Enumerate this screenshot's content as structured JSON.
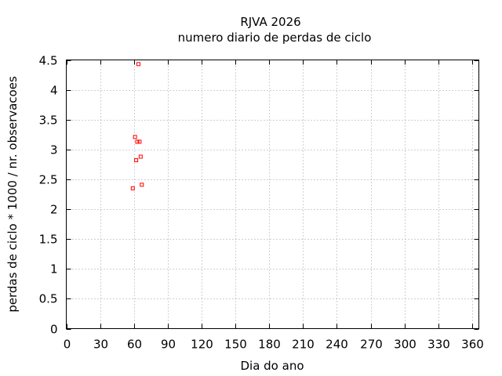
{
  "chart_data": {
    "type": "scatter",
    "title": "RJVA 2026",
    "subtitle": "numero diario de perdas de ciclo",
    "xlabel": "Dia do ano",
    "ylabel": "perdas de ciclo * 1000 / nr. observacoes",
    "xlim": [
      0,
      366
    ],
    "ylim": [
      0,
      4.5
    ],
    "xticks": [
      0,
      30,
      60,
      90,
      120,
      150,
      180,
      210,
      240,
      270,
      300,
      330,
      360
    ],
    "yticks": [
      0,
      0.5,
      1,
      1.5,
      2,
      2.5,
      3,
      3.5,
      4,
      4.5
    ],
    "xtick_labels": [
      "0",
      "30",
      "60",
      "90",
      "120",
      "150",
      "180",
      "210",
      "240",
      "270",
      "300",
      "330",
      "360"
    ],
    "ytick_labels": [
      "0",
      "0.5",
      "1",
      "1.5",
      "2",
      "2.5",
      "3",
      "3.5",
      "4",
      "4.5"
    ],
    "grid": true,
    "marker_color": "#ff0000",
    "points": [
      {
        "x": 59,
        "y": 2.35
      },
      {
        "x": 61,
        "y": 3.21
      },
      {
        "x": 62,
        "y": 2.82
      },
      {
        "x": 63,
        "y": 3.13
      },
      {
        "x": 64,
        "y": 4.43
      },
      {
        "x": 65,
        "y": 3.13
      },
      {
        "x": 66,
        "y": 2.88
      },
      {
        "x": 67,
        "y": 2.41
      }
    ]
  }
}
